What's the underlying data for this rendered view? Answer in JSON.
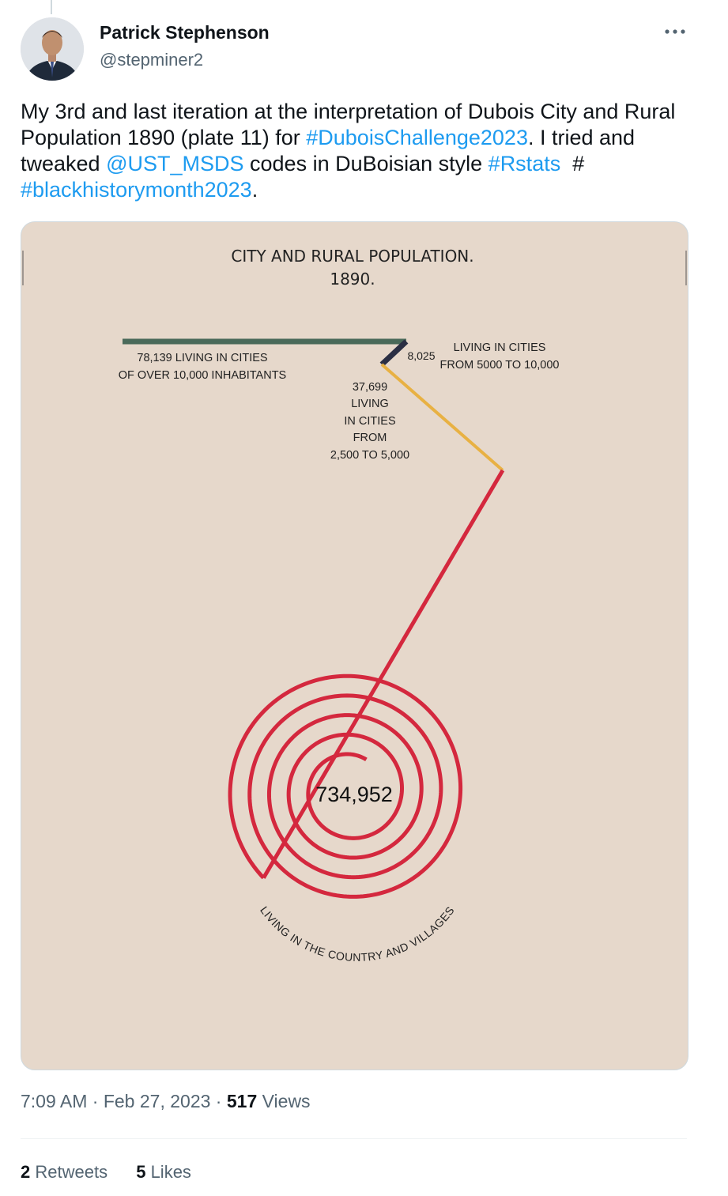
{
  "author": {
    "name": "Patrick Stephenson",
    "handle": "@stepminer2",
    "more_icon": "more-options-icon"
  },
  "tweet": {
    "t1": "My 3rd and last iteration at the interpretation of Dubois City and Rural Population 1890 (plate 11) for ",
    "h1": "#DuboisChallenge2023",
    "t2": ". I tried and tweaked ",
    "m1": "@UST_MSDS",
    "t3": " codes in DuBoisian style ",
    "h2": "#Rstats",
    "t4": "  #  ",
    "h3": "#blackhistorymonth2023",
    "t5": "."
  },
  "chart_data": {
    "type": "other",
    "title": "CITY AND RURAL POPULATION.",
    "subtitle": "1890.",
    "background": "#e6d8cb",
    "segments": [
      {
        "label": "78,139 LIVING IN CITIES",
        "label2": "OF OVER 10,000 INHABITANTS",
        "value": 78139,
        "color": "#4a6a5a"
      },
      {
        "value_label": "8,025",
        "label": "LIVING IN CITIES",
        "label2": "FROM 5000 TO 10,000",
        "value": 8025,
        "color": "#2b2f44"
      },
      {
        "lines": [
          "37,699",
          "LIVING",
          "IN CITIES",
          "FROM",
          "2,500 TO 5,000"
        ],
        "value": 37699,
        "color": "#e8b143"
      },
      {
        "value_label": "734,952",
        "label": "LIVING IN THE COUNTRY AND VILLAGES",
        "value": 734952,
        "color": "#d4283e"
      }
    ]
  },
  "meta": {
    "time": "7:09 AM",
    "sep1": " · ",
    "date": "Feb 27, 2023",
    "sep2": " · ",
    "views_count": "517",
    "views_label": " Views"
  },
  "stats": {
    "retweets_count": "2",
    "retweets_label": " Retweets",
    "likes_count": "5",
    "likes_label": " Likes"
  }
}
